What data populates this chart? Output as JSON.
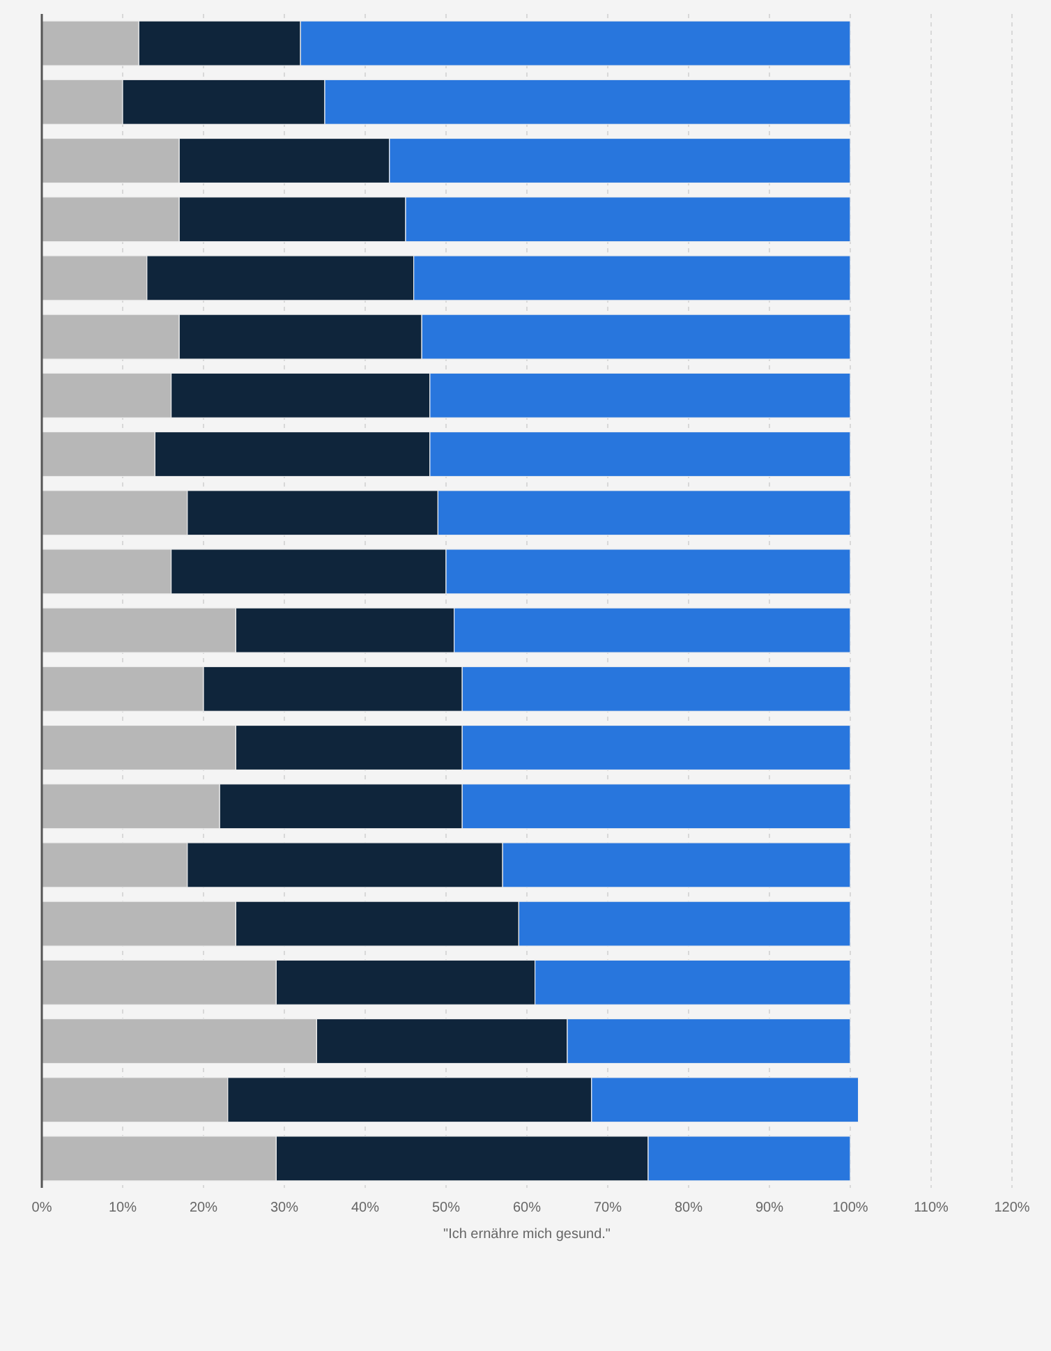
{
  "chart_data": {
    "type": "bar",
    "orientation": "horizontal",
    "stacked": true,
    "categories": [
      null,
      null,
      null,
      null,
      null,
      null,
      null,
      null,
      null,
      null,
      null,
      null,
      null,
      null,
      null,
      null,
      null,
      null,
      null,
      null
    ],
    "series": [
      {
        "color": "#b7b7b7",
        "values": [
          12,
          10,
          17,
          17,
          13,
          17,
          16,
          14,
          18,
          16,
          24,
          20,
          24,
          22,
          18,
          24,
          29,
          34,
          23,
          29
        ]
      },
      {
        "color": "#0f253b",
        "values": [
          20,
          25,
          26,
          28,
          33,
          30,
          32,
          34,
          31,
          34,
          27,
          32,
          28,
          30,
          39,
          35,
          32,
          31,
          45,
          46
        ]
      },
      {
        "color": "#2876dd",
        "values": [
          68,
          65,
          57,
          55,
          54,
          53,
          52,
          52,
          51,
          50,
          49,
          48,
          48,
          48,
          43,
          41,
          39,
          35,
          33,
          25
        ]
      }
    ],
    "xlabel": "\"Ich ernähre mich gesund.\"",
    "xlim": [
      0,
      120
    ],
    "xticks": [
      {
        "value": 0,
        "label": "0%"
      },
      {
        "value": 10,
        "label": "10%"
      },
      {
        "value": 20,
        "label": "20%"
      },
      {
        "value": 30,
        "label": "30%"
      },
      {
        "value": 40,
        "label": "40%"
      },
      {
        "value": 50,
        "label": "50%"
      },
      {
        "value": 60,
        "label": "60%"
      },
      {
        "value": 70,
        "label": "70%"
      },
      {
        "value": 80,
        "label": "80%"
      },
      {
        "value": 90,
        "label": "90%"
      },
      {
        "value": 100,
        "label": "100%"
      },
      {
        "value": 110,
        "label": "110%"
      },
      {
        "value": 120,
        "label": "120%"
      }
    ],
    "grid": "x"
  }
}
